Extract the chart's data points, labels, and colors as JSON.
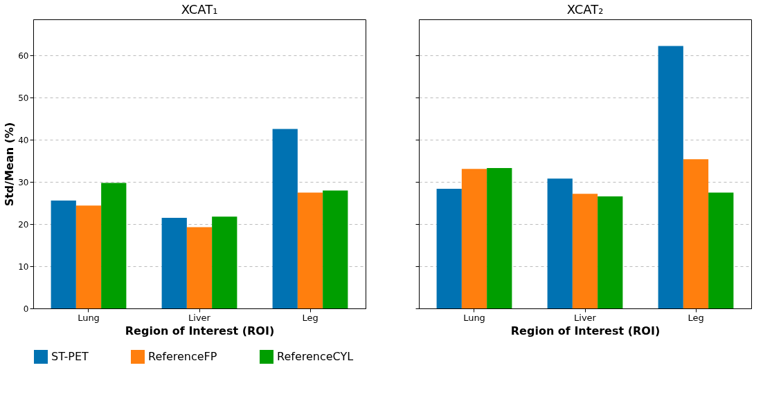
{
  "chart_data": [
    {
      "type": "bar",
      "title": "XCAT₁",
      "xlabel": "Region of Interest (ROI)",
      "ylabel": "Std/Mean (%)",
      "categories": [
        "Lung",
        "Liver",
        "Leg"
      ],
      "series": [
        {
          "name": "ST-PET",
          "color": "#0072b2",
          "values": [
            25.6,
            21.5,
            42.6
          ]
        },
        {
          "name": "ReferenceFP",
          "color": "#ff7f0e",
          "values": [
            24.4,
            19.3,
            27.5
          ]
        },
        {
          "name": "ReferenceCYL",
          "color": "#009e00",
          "values": [
            29.8,
            21.8,
            28.0
          ]
        }
      ],
      "ylim": [
        0,
        68.6
      ],
      "yticks": [
        0,
        10,
        20,
        30,
        40,
        50,
        60
      ],
      "grid": "y",
      "legend": "bottom"
    },
    {
      "type": "bar",
      "title": "XCAT₂",
      "xlabel": "Region of Interest (ROI)",
      "categories": [
        "Lung",
        "Liver",
        "Leg"
      ],
      "series": [
        {
          "name": "ST-PET",
          "color": "#0072b2",
          "values": [
            28.4,
            30.8,
            62.3
          ]
        },
        {
          "name": "ReferenceFP",
          "color": "#ff7f0e",
          "values": [
            33.1,
            27.2,
            35.4
          ]
        },
        {
          "name": "ReferenceCYL",
          "color": "#009e00",
          "values": [
            33.3,
            26.6,
            27.5
          ]
        }
      ],
      "ylim": [
        0,
        68.6
      ],
      "yticks": [
        0,
        10,
        20,
        30,
        40,
        50,
        60
      ],
      "grid": "y",
      "tick_labels": "x"
    }
  ]
}
